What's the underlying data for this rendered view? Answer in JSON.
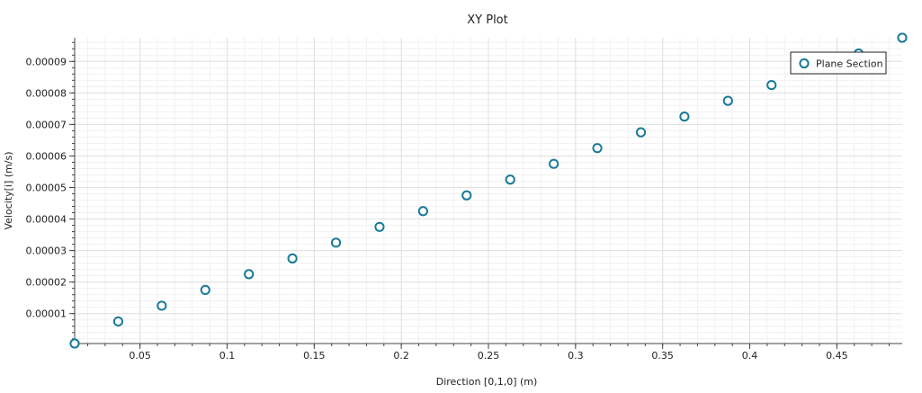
{
  "chart_data": {
    "type": "scatter",
    "title": "XY Plot",
    "xlabel": "Direction [0,1,0] (m)",
    "ylabel": "Velocity[i] (m/s)",
    "xlim": [
      0.0125,
      0.4875
    ],
    "ylim": [
      5e-07,
      9.75e-05
    ],
    "xticks": [
      0.05,
      0.1,
      0.15,
      0.2,
      0.25,
      0.3,
      0.35,
      0.4,
      0.45
    ],
    "xtick_labels": [
      "0.05",
      "0.1",
      "0.15",
      "0.2",
      "0.25",
      "0.3",
      "0.35",
      "0.4",
      "0.45"
    ],
    "yticks": [
      1e-05,
      2e-05,
      3e-05,
      4e-05,
      5e-05,
      6e-05,
      7e-05,
      8e-05,
      9e-05
    ],
    "ytick_labels": [
      "0.00001",
      "0.00002",
      "0.00003",
      "0.00004",
      "0.00005",
      "0.00006",
      "0.00007",
      "0.00008",
      "0.00009"
    ],
    "grid": true,
    "legend": "top-right",
    "series": [
      {
        "name": "Plane Section",
        "color": "#1a7a99",
        "marker": "circle-open",
        "x": [
          0.0125,
          0.0375,
          0.0625,
          0.0875,
          0.1125,
          0.1375,
          0.1625,
          0.1875,
          0.2125,
          0.2375,
          0.2625,
          0.2875,
          0.3125,
          0.3375,
          0.3625,
          0.3875,
          0.4125,
          0.4375,
          0.4625,
          0.4875
        ],
        "y": [
          5e-07,
          7.5e-06,
          1.25e-05,
          1.75e-05,
          2.25e-05,
          2.75e-05,
          3.25e-05,
          3.75e-05,
          4.25e-05,
          4.75e-05,
          5.25e-05,
          5.75e-05,
          6.25e-05,
          6.75e-05,
          7.25e-05,
          7.75e-05,
          8.25e-05,
          8.75e-05,
          9.25e-05,
          9.75e-05
        ]
      }
    ]
  }
}
